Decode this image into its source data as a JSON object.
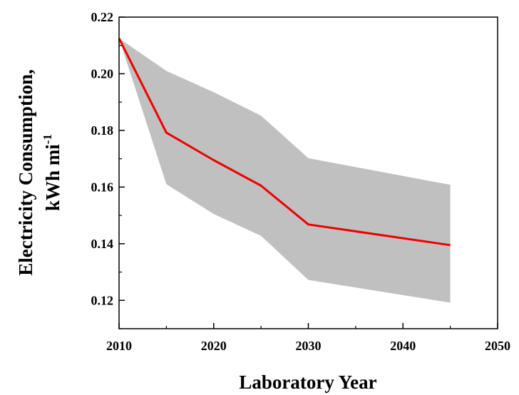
{
  "chart_data": {
    "type": "line",
    "xlabel": "Laboratory Year",
    "ylabel": {
      "line1": "Electricity Consumption,",
      "line2_base": "kWh mi",
      "line2_sup": "-1"
    },
    "xlim": [
      2010,
      2050
    ],
    "ylim": [
      0.11,
      0.22
    ],
    "xticks": [
      "2010",
      "2020",
      "2030",
      "2040",
      "2050"
    ],
    "yticks": [
      "0.12",
      "0.14",
      "0.16",
      "0.18",
      "0.20",
      "0.22"
    ],
    "grid": false,
    "series": [
      {
        "type": "line",
        "color": "#ee0000",
        "x": [
          2010,
          2015,
          2020,
          2025,
          2030,
          2045
        ],
        "values": [
          0.2125,
          0.1792,
          0.1695,
          0.1605,
          0.1468,
          0.1395
        ]
      }
    ],
    "band": {
      "color": "#c0c0c0",
      "x": [
        2010,
        2015,
        2020,
        2025,
        2030,
        2045
      ],
      "upper": [
        0.2125,
        0.201,
        0.1935,
        0.1852,
        0.1702,
        0.1608
      ],
      "lower": [
        0.2125,
        0.161,
        0.1505,
        0.1428,
        0.1272,
        0.1192
      ]
    }
  }
}
